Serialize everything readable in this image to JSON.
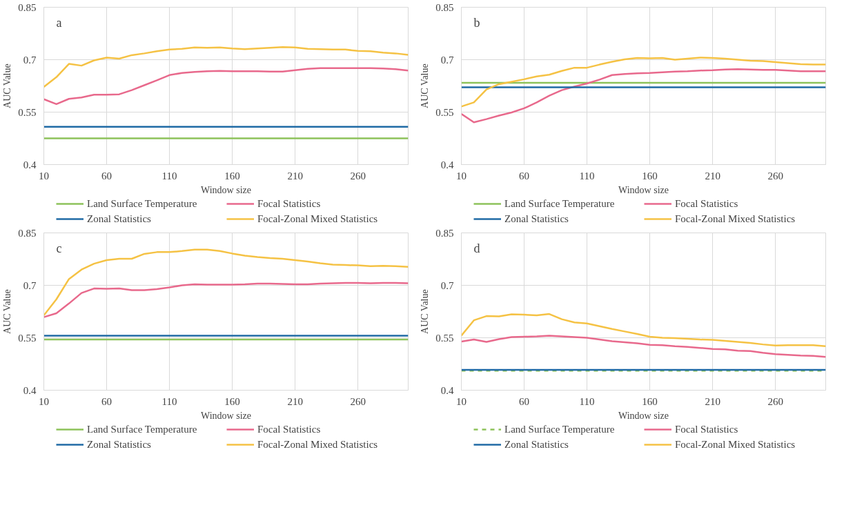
{
  "chart_data": [
    {
      "type": "line",
      "annotations": [
        "a"
      ],
      "xlabel": "Window size",
      "ylabel": "AUC Value",
      "xlim": [
        10,
        300
      ],
      "xticks": [
        10,
        60,
        110,
        160,
        210,
        260
      ],
      "ylim": [
        0.4,
        0.85
      ],
      "yticks": [
        0.4,
        0.55,
        0.7,
        0.85
      ],
      "grid": true,
      "legend": "bottom",
      "x": [
        10,
        20,
        30,
        40,
        50,
        60,
        70,
        80,
        90,
        100,
        110,
        120,
        130,
        140,
        150,
        160,
        170,
        180,
        190,
        200,
        210,
        220,
        230,
        240,
        250,
        260,
        270,
        280,
        290,
        300
      ],
      "series": [
        {
          "name": "Land Surface Temperature",
          "color": "#8dc25a",
          "values": [
            0.475,
            0.475,
            0.475,
            0.475,
            0.475,
            0.475,
            0.475,
            0.475,
            0.475,
            0.475,
            0.475,
            0.475,
            0.475,
            0.475,
            0.475,
            0.475,
            0.475,
            0.475,
            0.475,
            0.475,
            0.475,
            0.475,
            0.475,
            0.475,
            0.475,
            0.475,
            0.475,
            0.475,
            0.475,
            0.475
          ]
        },
        {
          "name": "Focal Statistics",
          "color": "#e8698c",
          "values": [
            0.587,
            0.573,
            0.588,
            0.592,
            0.6,
            0.6,
            0.601,
            0.613,
            0.627,
            0.641,
            0.656,
            0.662,
            0.665,
            0.667,
            0.668,
            0.667,
            0.667,
            0.667,
            0.666,
            0.666,
            0.67,
            0.674,
            0.676,
            0.676,
            0.676,
            0.676,
            0.676,
            0.675,
            0.673,
            0.669
          ]
        },
        {
          "name": "Zonal Statistics",
          "color": "#1f6aa5",
          "values": [
            0.508,
            0.508,
            0.508,
            0.508,
            0.508,
            0.508,
            0.508,
            0.508,
            0.508,
            0.508,
            0.508,
            0.508,
            0.508,
            0.508,
            0.508,
            0.508,
            0.508,
            0.508,
            0.508,
            0.508,
            0.508,
            0.508,
            0.508,
            0.508,
            0.508,
            0.508,
            0.508,
            0.508,
            0.508,
            0.508
          ]
        },
        {
          "name": "Focal-Zonal Mixed Statistics",
          "color": "#f5c244",
          "values": [
            0.622,
            0.65,
            0.688,
            0.683,
            0.698,
            0.706,
            0.703,
            0.713,
            0.718,
            0.724,
            0.729,
            0.731,
            0.735,
            0.734,
            0.735,
            0.732,
            0.73,
            0.732,
            0.734,
            0.736,
            0.735,
            0.731,
            0.73,
            0.729,
            0.729,
            0.725,
            0.724,
            0.72,
            0.718,
            0.714
          ]
        }
      ]
    },
    {
      "type": "line",
      "annotations": [
        "b"
      ],
      "xlabel": "Window size",
      "ylabel": "AUC Value",
      "xlim": [
        10,
        300
      ],
      "xticks": [
        10,
        60,
        110,
        160,
        210,
        260
      ],
      "ylim": [
        0.4,
        0.85
      ],
      "yticks": [
        0.4,
        0.55,
        0.7,
        0.85
      ],
      "grid": true,
      "legend": "bottom",
      "x": [
        10,
        20,
        30,
        40,
        50,
        60,
        70,
        80,
        90,
        100,
        110,
        120,
        130,
        140,
        150,
        160,
        170,
        180,
        190,
        200,
        210,
        220,
        230,
        240,
        250,
        260,
        270,
        280,
        290,
        300
      ],
      "series": [
        {
          "name": "Land Surface Temperature",
          "color": "#8dc25a",
          "values": [
            0.634,
            0.634,
            0.634,
            0.634,
            0.634,
            0.634,
            0.634,
            0.634,
            0.634,
            0.634,
            0.634,
            0.634,
            0.634,
            0.634,
            0.634,
            0.634,
            0.634,
            0.634,
            0.634,
            0.634,
            0.634,
            0.634,
            0.634,
            0.634,
            0.634,
            0.634,
            0.634,
            0.634,
            0.634,
            0.634
          ]
        },
        {
          "name": "Focal Statistics",
          "color": "#e8698c",
          "values": [
            0.545,
            0.521,
            0.53,
            0.54,
            0.549,
            0.561,
            0.578,
            0.597,
            0.613,
            0.623,
            0.632,
            0.643,
            0.656,
            0.659,
            0.661,
            0.662,
            0.664,
            0.666,
            0.667,
            0.669,
            0.67,
            0.672,
            0.673,
            0.672,
            0.671,
            0.671,
            0.669,
            0.667,
            0.667,
            0.667
          ]
        },
        {
          "name": "Zonal Statistics",
          "color": "#1f6aa5",
          "values": [
            0.621,
            0.621,
            0.621,
            0.621,
            0.621,
            0.621,
            0.621,
            0.621,
            0.621,
            0.621,
            0.621,
            0.621,
            0.621,
            0.621,
            0.621,
            0.621,
            0.621,
            0.621,
            0.621,
            0.621,
            0.621,
            0.621,
            0.621,
            0.621,
            0.621,
            0.621,
            0.621,
            0.621,
            0.621,
            0.621
          ]
        },
        {
          "name": "Focal-Zonal Mixed Statistics",
          "color": "#f5c244",
          "values": [
            0.566,
            0.578,
            0.615,
            0.63,
            0.637,
            0.644,
            0.652,
            0.657,
            0.668,
            0.677,
            0.677,
            0.686,
            0.694,
            0.701,
            0.705,
            0.704,
            0.705,
            0.7,
            0.703,
            0.706,
            0.705,
            0.703,
            0.7,
            0.697,
            0.696,
            0.693,
            0.69,
            0.687,
            0.686,
            0.686
          ]
        }
      ]
    },
    {
      "type": "line",
      "annotations": [
        "c"
      ],
      "xlabel": "Window size",
      "ylabel": "AUC Value",
      "xlim": [
        10,
        300
      ],
      "xticks": [
        10,
        60,
        110,
        160,
        210,
        260
      ],
      "ylim": [
        0.4,
        0.85
      ],
      "yticks": [
        0.4,
        0.55,
        0.7,
        0.85
      ],
      "grid": true,
      "legend": "bottom",
      "x": [
        10,
        20,
        30,
        40,
        50,
        60,
        70,
        80,
        90,
        100,
        110,
        120,
        130,
        140,
        150,
        160,
        170,
        180,
        190,
        200,
        210,
        220,
        230,
        240,
        250,
        260,
        270,
        280,
        290,
        300
      ],
      "series": [
        {
          "name": "Land Surface Temperature",
          "color": "#8dc25a",
          "values": [
            0.545,
            0.545,
            0.545,
            0.545,
            0.545,
            0.545,
            0.545,
            0.545,
            0.545,
            0.545,
            0.545,
            0.545,
            0.545,
            0.545,
            0.545,
            0.545,
            0.545,
            0.545,
            0.545,
            0.545,
            0.545,
            0.545,
            0.545,
            0.545,
            0.545,
            0.545,
            0.545,
            0.545,
            0.545,
            0.545
          ]
        },
        {
          "name": "Focal Statistics",
          "color": "#e8698c",
          "values": [
            0.609,
            0.62,
            0.648,
            0.678,
            0.691,
            0.69,
            0.691,
            0.686,
            0.686,
            0.689,
            0.694,
            0.7,
            0.703,
            0.702,
            0.702,
            0.702,
            0.703,
            0.705,
            0.705,
            0.704,
            0.703,
            0.703,
            0.705,
            0.706,
            0.707,
            0.707,
            0.706,
            0.707,
            0.707,
            0.706
          ]
        },
        {
          "name": "Zonal Statistics",
          "color": "#1f6aa5",
          "values": [
            0.556,
            0.556,
            0.556,
            0.556,
            0.556,
            0.556,
            0.556,
            0.556,
            0.556,
            0.556,
            0.556,
            0.556,
            0.556,
            0.556,
            0.556,
            0.556,
            0.556,
            0.556,
            0.556,
            0.556,
            0.556,
            0.556,
            0.556,
            0.556,
            0.556,
            0.556,
            0.556,
            0.556,
            0.556,
            0.556
          ]
        },
        {
          "name": "Focal-Zonal Mixed Statistics",
          "color": "#f5c244",
          "values": [
            0.614,
            0.66,
            0.718,
            0.745,
            0.762,
            0.772,
            0.776,
            0.776,
            0.79,
            0.795,
            0.795,
            0.798,
            0.802,
            0.802,
            0.798,
            0.791,
            0.785,
            0.781,
            0.778,
            0.776,
            0.772,
            0.768,
            0.763,
            0.759,
            0.758,
            0.757,
            0.755,
            0.756,
            0.755,
            0.753
          ]
        }
      ]
    },
    {
      "type": "line",
      "annotations": [
        "d"
      ],
      "xlabel": "Window size",
      "ylabel": "AUC Value",
      "xlim": [
        10,
        300
      ],
      "xticks": [
        10,
        60,
        110,
        160,
        210,
        260
      ],
      "ylim": [
        0.4,
        0.85
      ],
      "yticks": [
        0.4,
        0.55,
        0.7,
        0.85
      ],
      "grid": true,
      "legend": "bottom",
      "x": [
        10,
        20,
        30,
        40,
        50,
        60,
        70,
        80,
        90,
        100,
        110,
        120,
        130,
        140,
        150,
        160,
        170,
        180,
        190,
        200,
        210,
        220,
        230,
        240,
        250,
        260,
        270,
        280,
        290,
        300
      ],
      "series": [
        {
          "name": "Land Surface Temperature",
          "color": "#8dc25a",
          "line_style": "dashed",
          "values": [
            0.456,
            0.456,
            0.456,
            0.456,
            0.456,
            0.456,
            0.456,
            0.456,
            0.456,
            0.456,
            0.456,
            0.456,
            0.456,
            0.456,
            0.456,
            0.456,
            0.456,
            0.456,
            0.456,
            0.456,
            0.456,
            0.456,
            0.456,
            0.456,
            0.456,
            0.456,
            0.456,
            0.456,
            0.456,
            0.456
          ]
        },
        {
          "name": "Focal Statistics",
          "color": "#e8698c",
          "values": [
            0.539,
            0.545,
            0.538,
            0.546,
            0.552,
            0.553,
            0.554,
            0.556,
            0.554,
            0.552,
            0.55,
            0.545,
            0.54,
            0.537,
            0.534,
            0.53,
            0.529,
            0.526,
            0.524,
            0.521,
            0.518,
            0.517,
            0.513,
            0.512,
            0.507,
            0.503,
            0.501,
            0.499,
            0.498,
            0.495
          ]
        },
        {
          "name": "Zonal Statistics",
          "color": "#1f6aa5",
          "values": [
            0.458,
            0.458,
            0.458,
            0.458,
            0.458,
            0.458,
            0.458,
            0.458,
            0.458,
            0.458,
            0.458,
            0.458,
            0.458,
            0.458,
            0.458,
            0.458,
            0.458,
            0.458,
            0.458,
            0.458,
            0.458,
            0.458,
            0.458,
            0.458,
            0.458,
            0.458,
            0.458,
            0.458,
            0.458,
            0.458
          ]
        },
        {
          "name": "Focal-Zonal Mixed Statistics",
          "color": "#f5c244",
          "values": [
            0.556,
            0.6,
            0.612,
            0.611,
            0.617,
            0.616,
            0.614,
            0.618,
            0.603,
            0.594,
            0.591,
            0.583,
            0.575,
            0.568,
            0.561,
            0.553,
            0.55,
            0.549,
            0.547,
            0.545,
            0.544,
            0.541,
            0.538,
            0.535,
            0.531,
            0.528,
            0.529,
            0.529,
            0.529,
            0.526
          ]
        }
      ]
    }
  ]
}
